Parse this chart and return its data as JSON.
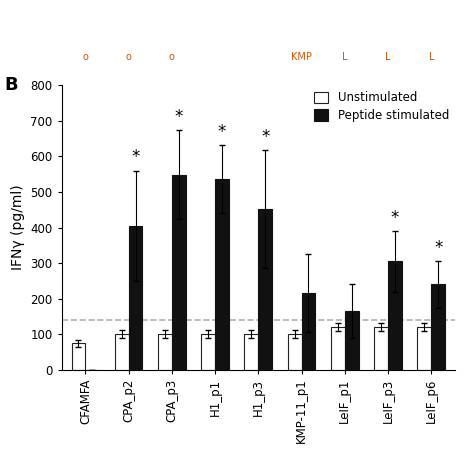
{
  "categories": [
    "CFAMFA",
    "CPA_p2",
    "CPA_p3",
    "H1_p1",
    "H1_p3",
    "KMP-11_p1",
    "LeIF_p1",
    "LeIF_p3",
    "LeIF_p6"
  ],
  "unstim_values": [
    75,
    100,
    100,
    100,
    100,
    100,
    120,
    120,
    120
  ],
  "unstim_errors": [
    10,
    12,
    12,
    12,
    12,
    12,
    12,
    12,
    12
  ],
  "peptide_values": [
    0,
    405,
    548,
    537,
    452,
    215,
    165,
    305,
    240
  ],
  "peptide_errors": [
    0,
    155,
    125,
    95,
    165,
    110,
    75,
    85,
    65
  ],
  "significant": [
    false,
    true,
    true,
    true,
    true,
    false,
    false,
    true,
    true
  ],
  "dashed_line_y": 140,
  "ylabel": "IFNγ (pg/ml)",
  "panel_label": "B",
  "ylim": [
    0,
    800
  ],
  "yticks": [
    0,
    100,
    200,
    300,
    400,
    500,
    600,
    700,
    800
  ],
  "legend_unstim": "Unstimulated",
  "legend_peptide": "Peptide stimulated",
  "bar_width": 0.32,
  "unstim_color": "white",
  "unstim_edgecolor": "#222222",
  "peptide_color": "#111111",
  "peptide_edgecolor": "#111111",
  "dashed_line_color": "#b0b0b0",
  "tick_fontsize": 8.5,
  "label_fontsize": 10
}
